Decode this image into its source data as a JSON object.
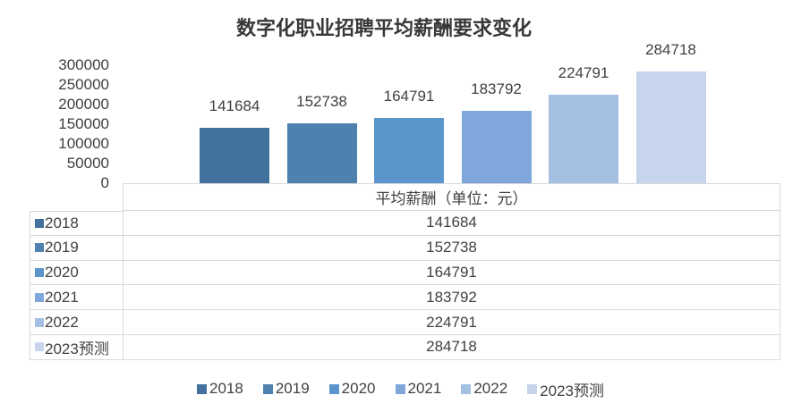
{
  "chart_data": {
    "type": "bar",
    "title": "数字化职业招聘平均薪酬要求变化",
    "categories": [
      "2018",
      "2019",
      "2020",
      "2021",
      "2022",
      "2023预测"
    ],
    "values": [
      141684,
      152738,
      164791,
      183792,
      224791,
      284718
    ],
    "data_labels": [
      "141684",
      "152738",
      "164791",
      "183792",
      "224791",
      "284718"
    ],
    "series_colors": [
      "#41719C",
      "#4E81AE",
      "#5B95CB",
      "#7FA7DC",
      "#A3BFE2",
      "#C6D5EC"
    ],
    "xlabel": "平均薪酬（单位：元）",
    "ylabel": "",
    "ylim": [
      0,
      300000
    ],
    "yticks": [
      0,
      50000,
      100000,
      150000,
      200000,
      250000,
      300000
    ],
    "grid": false,
    "legend_position": "bottom"
  },
  "table": {
    "header": "平均薪酬（单位：元）",
    "rows": [
      {
        "label": "2018",
        "value": "141684"
      },
      {
        "label": "2019",
        "value": "152738"
      },
      {
        "label": "2020",
        "value": "164791"
      },
      {
        "label": "2021",
        "value": "183792"
      },
      {
        "label": "2022",
        "value": "224791"
      },
      {
        "label": "2023预测",
        "value": "284718"
      }
    ]
  },
  "legend": {
    "items": [
      "2018",
      "2019",
      "2020",
      "2021",
      "2022",
      "2023预测"
    ]
  }
}
